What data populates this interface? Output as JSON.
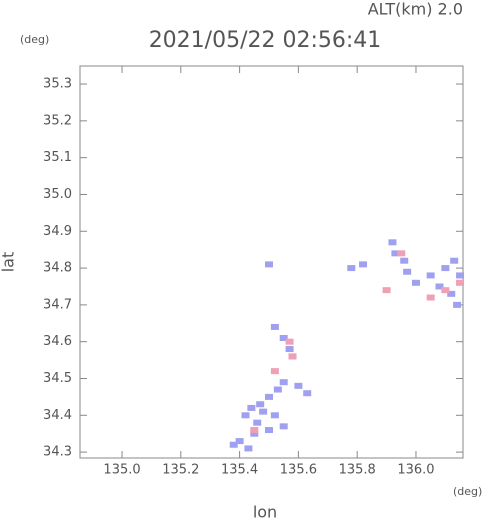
{
  "chart_data": {
    "type": "scatter",
    "title": "2021/05/22 02:56:41",
    "annotation": "ALT(km) 2.0",
    "y_unit": "(deg)",
    "x_unit": "(deg)",
    "xlabel": "lon",
    "ylabel": "lat",
    "xlim": [
      134.857,
      136.16
    ],
    "ylim": [
      34.284,
      35.349
    ],
    "xticks": [
      {
        "value": 135.0,
        "label": "135.0"
      },
      135.2,
      135.4,
      135.6,
      135.8,
      {
        "value": 136.0,
        "label": "136.0"
      }
    ],
    "yticks": [
      34.3,
      34.4,
      34.5,
      34.6,
      34.7,
      34.8,
      34.9,
      {
        "value": 35.0,
        "label": "35.0"
      },
      35.1,
      35.2,
      35.3
    ],
    "series": [
      {
        "color": "#a0a0f0",
        "x": [
          135.5,
          135.78,
          135.82,
          135.92,
          135.93,
          135.96,
          135.97,
          136.0,
          136.05,
          136.1,
          136.13,
          136.15,
          136.12,
          136.14,
          136.08,
          135.52,
          135.55,
          135.57,
          135.58,
          135.55,
          135.6,
          135.63,
          135.53,
          135.5,
          135.47,
          135.44,
          135.42,
          135.46,
          135.5,
          135.45,
          135.4,
          135.43,
          135.52,
          135.55,
          135.38,
          135.48
        ],
        "y": [
          34.81,
          34.8,
          34.81,
          34.87,
          34.84,
          34.82,
          34.79,
          34.76,
          34.78,
          34.8,
          34.82,
          34.78,
          34.73,
          34.7,
          34.75,
          34.64,
          34.61,
          34.58,
          34.56,
          34.49,
          34.48,
          34.46,
          34.47,
          34.45,
          34.43,
          34.42,
          34.4,
          34.38,
          34.36,
          34.35,
          34.33,
          34.31,
          34.4,
          34.37,
          34.32,
          34.41
        ]
      },
      {
        "color": "#f0a0b4",
        "x": [
          135.95,
          136.1,
          136.15,
          136.05,
          135.9,
          135.57,
          135.52,
          135.58,
          135.45
        ],
        "y": [
          34.84,
          34.74,
          34.76,
          34.72,
          34.74,
          34.6,
          34.52,
          34.56,
          34.36
        ]
      }
    ]
  }
}
